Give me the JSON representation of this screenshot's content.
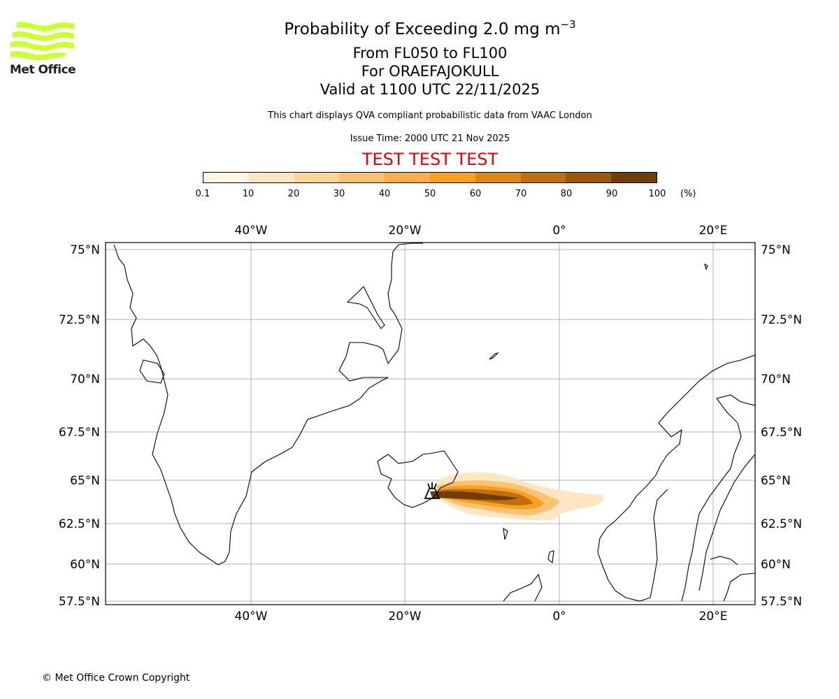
{
  "header": {
    "title_prefix": "Probability of Exceeding 2.0 mg m",
    "title_exponent": "−3",
    "subtitle_levels": "From FL050 to FL100",
    "subtitle_volcano": "For ORAEFAJOKULL",
    "subtitle_valid": "Valid at 1100 UTC 22/11/2025",
    "disclaimer": "This chart displays QVA compliant probabilistic data from VAAC London",
    "issue_time": "Issue Time: 2000 UTC 21 Nov 2025",
    "test_banner": "TEST TEST TEST"
  },
  "logo": {
    "text": "Met Office",
    "icon": "met-office-waves-icon",
    "color": "#ccff33"
  },
  "legend": {
    "unit": "(%)",
    "ticks": [
      "0.1",
      "10",
      "20",
      "30",
      "40",
      "50",
      "60",
      "70",
      "80",
      "90",
      "100"
    ],
    "colors": [
      "#fff5e3",
      "#fee6c2",
      "#fdd59a",
      "#fdc271",
      "#fcae4a",
      "#f99f22",
      "#e08612",
      "#c0700a",
      "#9c5806",
      "#6e3e06"
    ]
  },
  "map": {
    "lon_labels": [
      "40°W",
      "20°W",
      "0°",
      "20°E"
    ],
    "lat_labels": [
      "75°N",
      "72.5°N",
      "70°N",
      "67.5°N",
      "65°N",
      "62.5°N",
      "60°N",
      "57.5°N"
    ],
    "volcano_marker": "volcano-icon"
  },
  "footer": {
    "copyright": "© Met Office Crown Copyright"
  }
}
